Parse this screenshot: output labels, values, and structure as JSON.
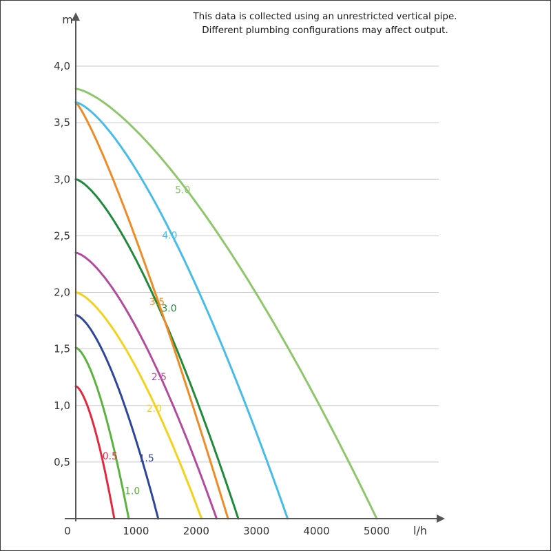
{
  "note": {
    "line1": "This data is collected using an unrestricted vertical pipe.",
    "line2": "Different plumbing configurations may affect output."
  },
  "chart_data": {
    "type": "line",
    "title": "",
    "xlabel": "l/h",
    "ylabel": "m",
    "xlim": [
      0,
      6000
    ],
    "ylim": [
      0,
      4.4
    ],
    "x_ticks": [
      "0",
      "1000",
      "2000",
      "3000",
      "4000",
      "5000"
    ],
    "y_ticks": [
      "0,5",
      "1,0",
      "1,5",
      "2,0",
      "2,5",
      "3,0",
      "3,5",
      "4,0"
    ],
    "y_tick_values": [
      0.5,
      1.0,
      1.5,
      2.0,
      2.5,
      3.0,
      3.5,
      4.0
    ],
    "grid": "horizontal",
    "series": [
      {
        "name": "0.5",
        "color": "#e2283e",
        "shut_off_head": 1.17,
        "max_flow": 640
      },
      {
        "name": "1.0",
        "color": "#5ab33d",
        "shut_off_head": 1.51,
        "max_flow": 880
      },
      {
        "name": "1.5",
        "color": "#2d469c",
        "shut_off_head": 1.8,
        "max_flow": 1370
      },
      {
        "name": "2.0",
        "color": "#f4d21a",
        "shut_off_head": 2.0,
        "max_flow": 2090
      },
      {
        "name": "2.5",
        "color": "#b24b9e",
        "shut_off_head": 2.35,
        "max_flow": 2340
      },
      {
        "name": "3.0",
        "color": "#1f8a3a",
        "shut_off_head": 3.0,
        "max_flow": 2700
      },
      {
        "name": "3.5",
        "color": "#f08a24",
        "shut_off_head": 3.68,
        "max_flow": 2530
      },
      {
        "name": "4.0",
        "color": "#45bde8",
        "shut_off_head": 3.68,
        "max_flow": 3520
      },
      {
        "name": "5.0",
        "color": "#8dc76a",
        "shut_off_head": 3.8,
        "max_flow": 5000
      }
    ]
  }
}
